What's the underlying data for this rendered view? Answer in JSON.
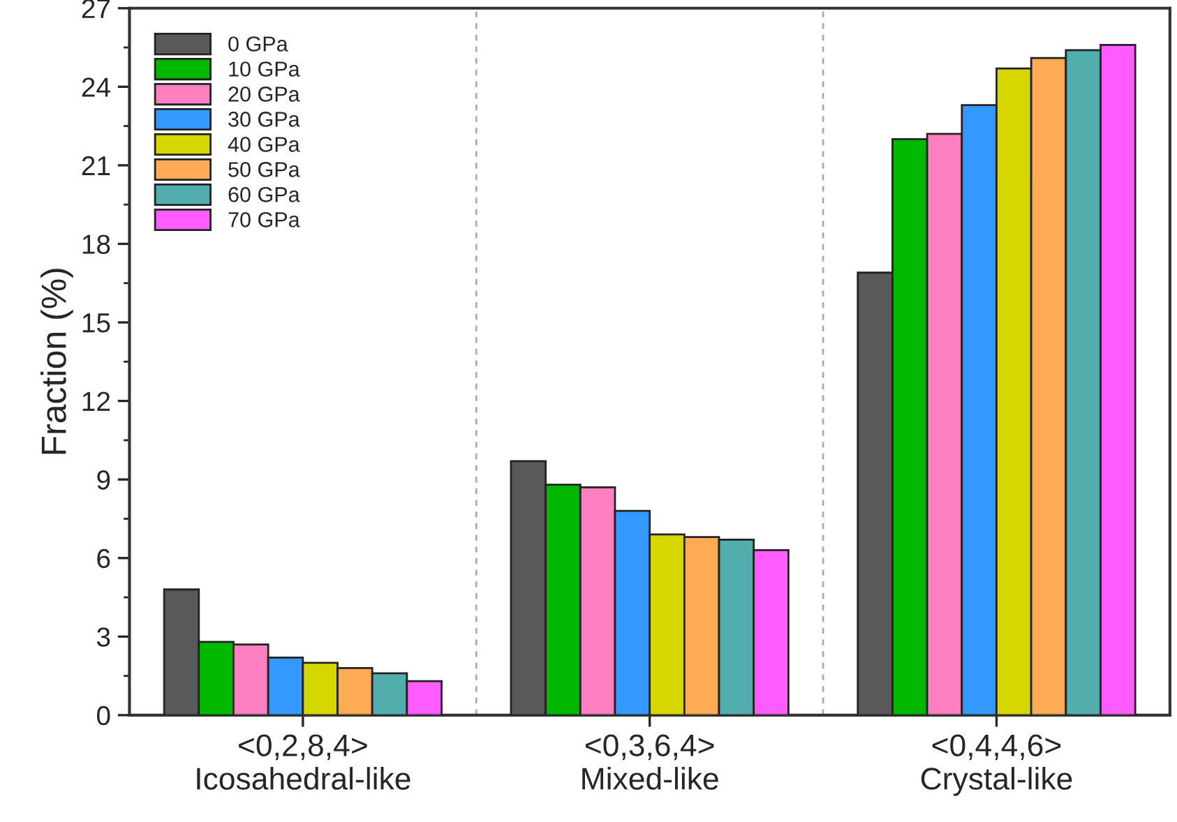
{
  "chart_data": {
    "type": "bar",
    "ylabel": "Fraction (%)",
    "categories": [
      "<0,2,8,4>\nIcosahedral-like",
      "<0,3,6,4>\nMixed-like",
      "<0,4,4,6>\nCrystal-like"
    ],
    "series": [
      {
        "name": "0 GPa",
        "color": "#595959",
        "values": [
          4.8,
          9.7,
          16.9
        ]
      },
      {
        "name": "10 GPa",
        "color": "#00b800",
        "values": [
          2.8,
          8.8,
          22.0
        ]
      },
      {
        "name": "20 GPa",
        "color": "#ff80c0",
        "values": [
          2.7,
          8.7,
          22.2
        ]
      },
      {
        "name": "30 GPa",
        "color": "#3399ff",
        "values": [
          2.2,
          7.8,
          23.3
        ]
      },
      {
        "name": "40 GPa",
        "color": "#d6d600",
        "values": [
          2.0,
          6.9,
          24.7
        ]
      },
      {
        "name": "50 GPa",
        "color": "#ffaa55",
        "values": [
          1.8,
          6.8,
          25.1
        ]
      },
      {
        "name": "60 GPa",
        "color": "#52aeac",
        "values": [
          1.6,
          6.7,
          25.4
        ]
      },
      {
        "name": "70 GPa",
        "color": "#ff5cff",
        "values": [
          1.3,
          6.3,
          25.6
        ]
      }
    ],
    "ylim": [
      0,
      27
    ],
    "yticks": [
      0,
      3,
      6,
      9,
      12,
      15,
      18,
      21,
      24,
      27
    ],
    "legend": "top left",
    "grid": false
  }
}
